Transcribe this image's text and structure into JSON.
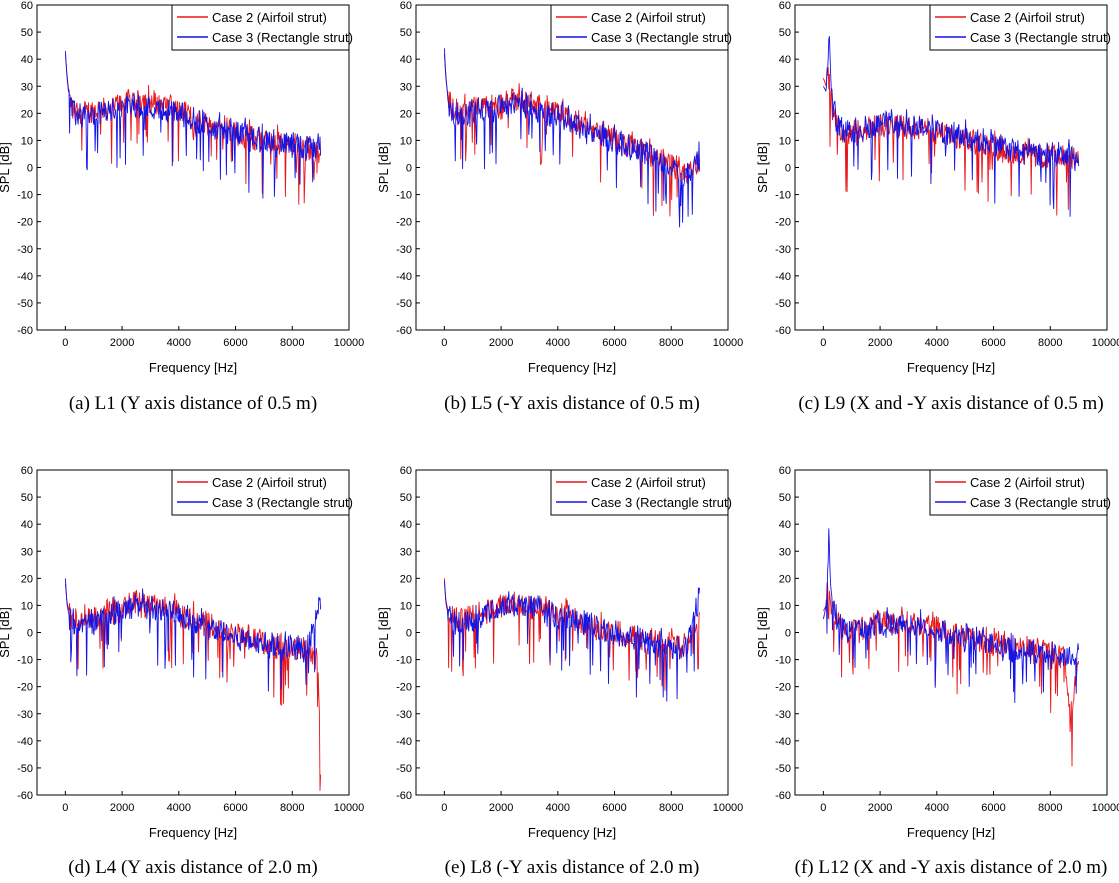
{
  "figure": {
    "legend": {
      "case2": "Case 2 (Airfoil strut)",
      "case3": "Case 3 (Rectangle strut)"
    },
    "colors": {
      "case2": "#e8161b",
      "case3": "#1414e6"
    },
    "xlabel": "Frequency [Hz]",
    "ylabel": "SPL [dB]"
  },
  "chart_data": [
    {
      "type": "line",
      "id": "a",
      "caption": "(a) L1 (Y axis distance of 0.5 m)",
      "xlabel": "Frequency [Hz]",
      "ylabel": "SPL [dB]",
      "xlim": [
        -1000,
        10000
      ],
      "ylim": [
        -60,
        60
      ],
      "xticks": [
        0,
        2000,
        4000,
        6000,
        8000,
        10000
      ],
      "yticks": [
        60,
        50,
        40,
        30,
        20,
        10,
        0,
        -10,
        -20,
        -30,
        -40,
        -50,
        -60
      ],
      "series": [
        {
          "name": "Case 2 (Airfoil strut)",
          "x": [
            0,
            50,
            150,
            300,
            600,
            1000,
            1500,
            2000,
            2400,
            2600,
            3000,
            3500,
            4000,
            4400,
            4500,
            4700,
            5000,
            5500,
            6000,
            6200,
            6300,
            6600,
            7000,
            7500,
            8000,
            8500,
            9000
          ],
          "y": [
            42,
            35,
            25,
            21,
            20,
            21,
            22,
            24,
            25,
            26,
            24,
            23,
            21,
            19,
            14,
            18,
            16,
            15,
            13,
            12,
            11,
            11,
            10,
            9,
            8,
            7,
            6
          ]
        },
        {
          "name": "Case 3 (Rectangle strut)",
          "x": [
            0,
            50,
            150,
            300,
            600,
            1000,
            1500,
            2000,
            2500,
            3000,
            3500,
            4000,
            4500,
            5000,
            5500,
            6000,
            6500,
            7000,
            7500,
            8000,
            8500,
            8800,
            9000
          ],
          "y": [
            43,
            34,
            24,
            20,
            19,
            19,
            21,
            22,
            23,
            22,
            21,
            20,
            18,
            16,
            14,
            13,
            11,
            10,
            9,
            8,
            7,
            8,
            9
          ]
        }
      ]
    },
    {
      "type": "line",
      "id": "b",
      "caption": "(b) L5 (-Y axis distance of 0.5 m)",
      "xlabel": "Frequency [Hz]",
      "ylabel": "SPL [dB]",
      "xlim": [
        -1000,
        10000
      ],
      "ylim": [
        -60,
        60
      ],
      "xticks": [
        0,
        2000,
        4000,
        6000,
        8000,
        10000
      ],
      "yticks": [
        60,
        50,
        40,
        30,
        20,
        10,
        0,
        -10,
        -20,
        -30,
        -40,
        -50,
        -60
      ],
      "series": [
        {
          "name": "Case 2 (Airfoil strut)",
          "x": [
            0,
            50,
            150,
            300,
            600,
            1000,
            1500,
            2000,
            2500,
            3000,
            3500,
            4000,
            4500,
            5000,
            5500,
            6000,
            6500,
            7000,
            7500,
            8000,
            8500,
            9000
          ],
          "y": [
            42,
            33,
            24,
            21,
            20,
            21,
            22,
            23,
            25,
            24,
            22,
            20,
            18,
            15,
            13,
            10,
            8,
            6,
            3,
            1,
            -2,
            2
          ]
        },
        {
          "name": "Case 3 (Rectangle strut)",
          "x": [
            0,
            50,
            150,
            300,
            600,
            1000,
            1500,
            2000,
            2500,
            3000,
            3500,
            4000,
            4500,
            5000,
            5500,
            6000,
            6500,
            7000,
            7500,
            8000,
            8500,
            9000
          ],
          "y": [
            44,
            34,
            23,
            20,
            19,
            20,
            21,
            22,
            23,
            22,
            20,
            19,
            17,
            14,
            12,
            10,
            8,
            6,
            3,
            0,
            -3,
            3
          ]
        }
      ]
    },
    {
      "type": "line",
      "id": "c",
      "caption": "(c) L9 (X and -Y axis distance of 0.5 m)",
      "xlabel": "Frequency [Hz]",
      "ylabel": "SPL [dB]",
      "xlim": [
        -1000,
        10000
      ],
      "ylim": [
        -60,
        60
      ],
      "xticks": [
        0,
        2000,
        4000,
        6000,
        8000,
        10000
      ],
      "yticks": [
        60,
        50,
        40,
        30,
        20,
        10,
        0,
        -10,
        -20,
        -30,
        -40,
        -50,
        -60
      ],
      "series": [
        {
          "name": "Case 2 (Airfoil strut)",
          "x": [
            0,
            100,
            150,
            200,
            300,
            500,
            800,
            1200,
            1600,
            2000,
            2500,
            3000,
            3500,
            4000,
            4500,
            5000,
            5500,
            6000,
            6500,
            7000,
            7500,
            8000,
            8500,
            9000
          ],
          "y": [
            33,
            30,
            38,
            31,
            23,
            15,
            12,
            13,
            14,
            15,
            16,
            15,
            14,
            13,
            11,
            10,
            9,
            8,
            6,
            5,
            4,
            4,
            3,
            2
          ]
        },
        {
          "name": "Case 3 (Rectangle strut)",
          "x": [
            0,
            100,
            150,
            200,
            250,
            300,
            500,
            800,
            1200,
            1600,
            2000,
            2500,
            3000,
            3500,
            4000,
            4500,
            5000,
            5500,
            6000,
            6500,
            7000,
            7500,
            8000,
            8500,
            9000
          ],
          "y": [
            30,
            28,
            40,
            51,
            35,
            24,
            16,
            13,
            14,
            15,
            16,
            17,
            16,
            15,
            14,
            12,
            11,
            9,
            8,
            7,
            6,
            5,
            5,
            4,
            3
          ]
        }
      ]
    },
    {
      "type": "line",
      "id": "d",
      "caption": "(d) L4 (Y axis distance of 2.0 m)",
      "xlabel": "Frequency [Hz]",
      "ylabel": "SPL [dB]",
      "xlim": [
        -1000,
        10000
      ],
      "ylim": [
        -60,
        60
      ],
      "xticks": [
        0,
        2000,
        4000,
        6000,
        8000,
        10000
      ],
      "yticks": [
        60,
        50,
        40,
        30,
        20,
        10,
        0,
        -10,
        -20,
        -30,
        -40,
        -50,
        -60
      ],
      "series": [
        {
          "name": "Case 2 (Airfoil strut)",
          "x": [
            0,
            50,
            150,
            300,
            600,
            1000,
            1500,
            2000,
            2500,
            3000,
            3500,
            4000,
            4500,
            5000,
            5500,
            6000,
            6500,
            7000,
            7500,
            8000,
            8500,
            8900,
            9000
          ],
          "y": [
            18,
            12,
            6,
            4,
            4,
            5,
            7,
            9,
            11,
            10,
            9,
            7,
            5,
            3,
            1,
            -1,
            -2,
            -4,
            -5,
            -6,
            -7,
            -10,
            -51
          ]
        },
        {
          "name": "Case 3 (Rectangle strut)",
          "x": [
            0,
            50,
            150,
            300,
            600,
            1000,
            1500,
            2000,
            2500,
            3000,
            3500,
            4000,
            4500,
            5000,
            5500,
            6000,
            6500,
            7000,
            7500,
            8000,
            8500,
            9000
          ],
          "y": [
            20,
            11,
            5,
            3,
            3,
            4,
            6,
            8,
            10,
            9,
            8,
            6,
            4,
            2,
            0,
            -2,
            -3,
            -4,
            -5,
            -6,
            -7,
            11
          ]
        }
      ]
    },
    {
      "type": "line",
      "id": "e",
      "caption": "(e) L8 (-Y axis distance of 2.0 m)",
      "xlabel": "Frequency [Hz]",
      "ylabel": "SPL [dB]",
      "xlim": [
        -1000,
        10000
      ],
      "ylim": [
        -60,
        60
      ],
      "xticks": [
        0,
        2000,
        4000,
        6000,
        8000,
        10000
      ],
      "yticks": [
        60,
        50,
        40,
        30,
        20,
        10,
        0,
        -10,
        -20,
        -30,
        -40,
        -50,
        -60
      ],
      "series": [
        {
          "name": "Case 2 (Airfoil strut)",
          "x": [
            0,
            50,
            150,
            300,
            600,
            1000,
            1500,
            2000,
            2500,
            3000,
            3500,
            4000,
            4500,
            5000,
            5500,
            6000,
            6500,
            7000,
            7500,
            8000,
            8500,
            9000
          ],
          "y": [
            20,
            12,
            7,
            5,
            5,
            6,
            8,
            10,
            11,
            10,
            9,
            7,
            5,
            3,
            1,
            0,
            -1,
            -2,
            -3,
            -4,
            -5,
            6
          ]
        },
        {
          "name": "Case 3 (Rectangle strut)",
          "x": [
            0,
            50,
            150,
            300,
            600,
            1000,
            1500,
            2000,
            2500,
            3000,
            3500,
            4000,
            4500,
            5000,
            5500,
            6000,
            6500,
            7000,
            7500,
            8000,
            8500,
            9000
          ],
          "y": [
            19,
            11,
            6,
            4,
            4,
            5,
            7,
            9,
            10,
            10,
            8,
            6,
            5,
            3,
            1,
            -1,
            -2,
            -3,
            -4,
            -5,
            -6,
            14
          ]
        }
      ]
    },
    {
      "type": "line",
      "id": "f",
      "caption": "(f) L12 (X and -Y axis distance of 2.0 m)",
      "xlabel": "Frequency [Hz]",
      "ylabel": "SPL [dB]",
      "xlim": [
        -1000,
        10000
      ],
      "ylim": [
        -60,
        60
      ],
      "xticks": [
        0,
        2000,
        4000,
        6000,
        8000,
        10000
      ],
      "yticks": [
        60,
        50,
        40,
        30,
        20,
        10,
        0,
        -10,
        -20,
        -30,
        -40,
        -50,
        -60
      ],
      "series": [
        {
          "name": "Case 2 (Airfoil strut)",
          "x": [
            0,
            100,
            150,
            200,
            300,
            500,
            800,
            1200,
            1600,
            2000,
            2500,
            3000,
            3500,
            4000,
            4500,
            5000,
            5500,
            6000,
            6500,
            7000,
            7500,
            8000,
            8500,
            8700,
            9000
          ],
          "y": [
            8,
            10,
            20,
            14,
            9,
            4,
            1,
            1,
            2,
            3,
            4,
            4,
            3,
            2,
            0,
            -2,
            -3,
            -4,
            -5,
            -6,
            -7,
            -8,
            -9,
            -33,
            -8
          ]
        },
        {
          "name": "Case 3 (Rectangle strut)",
          "x": [
            0,
            100,
            150,
            200,
            250,
            300,
            500,
            800,
            1200,
            1600,
            2000,
            2500,
            3000,
            3500,
            4000,
            4500,
            5000,
            5500,
            6000,
            6500,
            7000,
            7500,
            8000,
            8500,
            9000
          ],
          "y": [
            5,
            10,
            25,
            39,
            20,
            10,
            4,
            0,
            1,
            2,
            3,
            3,
            3,
            2,
            1,
            -1,
            -2,
            -3,
            -5,
            -6,
            -7,
            -8,
            -9,
            -9,
            -8
          ]
        }
      ]
    }
  ]
}
